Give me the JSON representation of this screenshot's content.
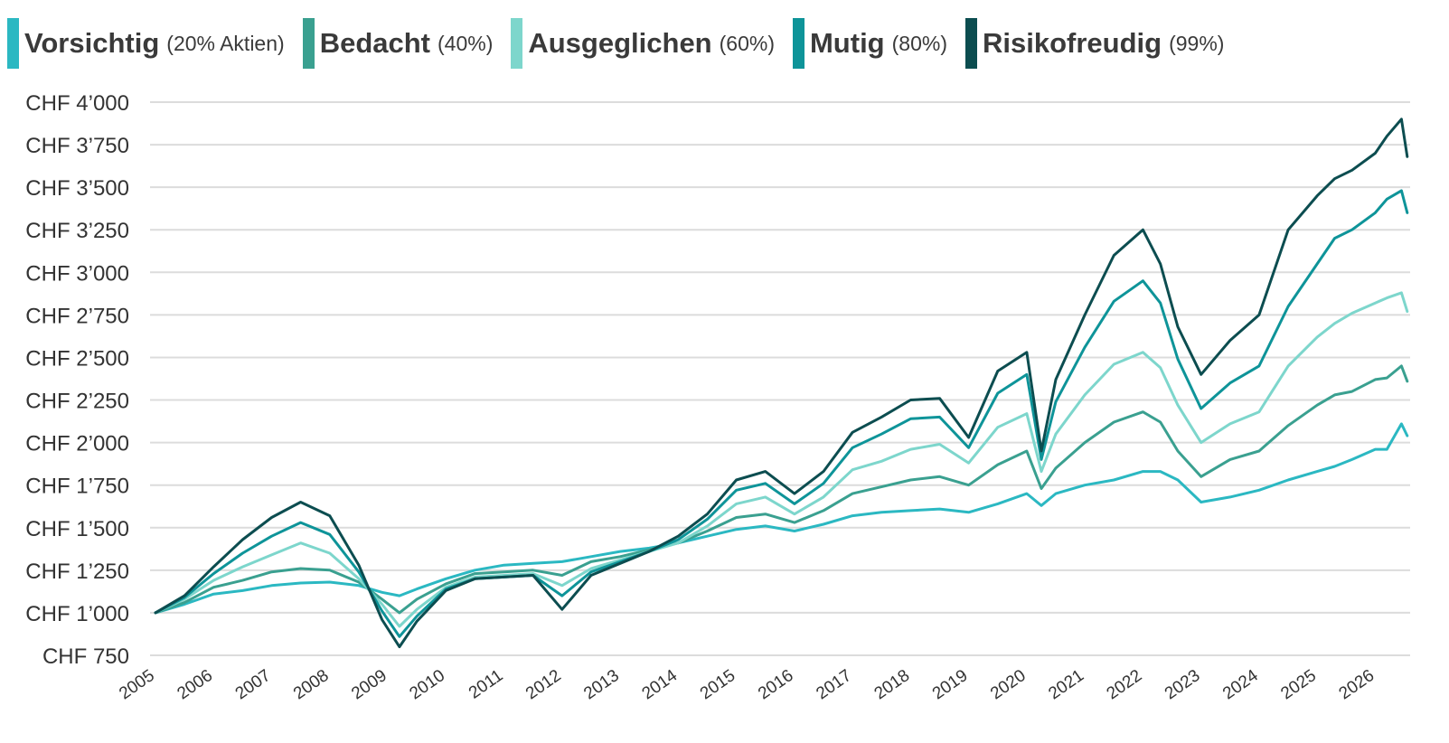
{
  "chart_data": {
    "type": "line",
    "title": "",
    "xlabel": "",
    "ylabel": "",
    "x_ticks": [
      "2005",
      "2006",
      "2007",
      "2008",
      "2009",
      "2010",
      "2011",
      "2012",
      "2013",
      "2014",
      "2015",
      "2016",
      "2017",
      "2018",
      "2019",
      "2020",
      "2021",
      "2022",
      "2023",
      "2024",
      "2025",
      "2026"
    ],
    "y_ticks": [
      {
        "value": 750,
        "label": "CHF 750"
      },
      {
        "value": 1000,
        "label": "CHF 1’000"
      },
      {
        "value": 1250,
        "label": "CHF 1’250"
      },
      {
        "value": 1500,
        "label": "CHF 1’500"
      },
      {
        "value": 1750,
        "label": "CHF 1’750"
      },
      {
        "value": 2000,
        "label": "CHF 2’000"
      },
      {
        "value": 2250,
        "label": "CHF 2’250"
      },
      {
        "value": 2500,
        "label": "CHF 2’500"
      },
      {
        "value": 2750,
        "label": "CHF 2’750"
      },
      {
        "value": 3000,
        "label": "CHF 3’000"
      },
      {
        "value": 3250,
        "label": "CHF 3’250"
      },
      {
        "value": 3500,
        "label": "CHF 3’500"
      },
      {
        "value": 3750,
        "label": "CHF 3’750"
      },
      {
        "value": 4000,
        "label": "CHF 4’000"
      }
    ],
    "xlim": [
      2005,
      2026.6
    ],
    "ylim": [
      750,
      4000
    ],
    "grid": "horizontal",
    "legend_position": "top",
    "series": [
      {
        "name": "Vorsichtig",
        "note": "(20% Aktien)",
        "color": "#2bb8c2",
        "x": [
          2005,
          2005.5,
          2006,
          2006.5,
          2007,
          2007.5,
          2008,
          2008.5,
          2008.9,
          2009.2,
          2009.5,
          2010,
          2010.5,
          2011,
          2011.5,
          2012,
          2012.5,
          2013,
          2013.5,
          2014,
          2014.5,
          2015,
          2015.5,
          2016,
          2016.5,
          2017,
          2017.5,
          2018,
          2018.5,
          2019,
          2019.5,
          2020,
          2020.25,
          2020.5,
          2021,
          2021.5,
          2022,
          2022.3,
          2022.6,
          2023,
          2023.5,
          2024,
          2024.5,
          2025,
          2025.3,
          2025.6,
          2026,
          2026.2,
          2026.45,
          2026.55
        ],
        "values": [
          1000,
          1050,
          1110,
          1130,
          1160,
          1175,
          1180,
          1160,
          1120,
          1100,
          1140,
          1200,
          1250,
          1280,
          1290,
          1300,
          1330,
          1360,
          1380,
          1410,
          1450,
          1490,
          1510,
          1480,
          1520,
          1570,
          1590,
          1600,
          1610,
          1590,
          1640,
          1700,
          1630,
          1700,
          1750,
          1780,
          1830,
          1830,
          1780,
          1650,
          1680,
          1720,
          1780,
          1830,
          1860,
          1900,
          1960,
          1960,
          2110,
          2040
        ]
      },
      {
        "name": "Bedacht",
        "note": "(40%)",
        "color": "#3aa090",
        "x": [
          2005,
          2005.5,
          2006,
          2006.5,
          2007,
          2007.5,
          2008,
          2008.5,
          2008.9,
          2009.2,
          2009.5,
          2010,
          2010.5,
          2011,
          2011.5,
          2012,
          2012.5,
          2013,
          2013.5,
          2014,
          2014.5,
          2015,
          2015.5,
          2016,
          2016.5,
          2017,
          2017.5,
          2018,
          2018.5,
          2019,
          2019.5,
          2020,
          2020.25,
          2020.5,
          2021,
          2021.5,
          2022,
          2022.3,
          2022.6,
          2023,
          2023.5,
          2024,
          2024.5,
          2025,
          2025.3,
          2025.6,
          2026,
          2026.2,
          2026.45,
          2026.55
        ],
        "values": [
          1000,
          1060,
          1150,
          1190,
          1240,
          1260,
          1250,
          1180,
          1080,
          1000,
          1080,
          1170,
          1230,
          1240,
          1250,
          1220,
          1300,
          1330,
          1370,
          1410,
          1480,
          1560,
          1580,
          1530,
          1600,
          1700,
          1740,
          1780,
          1800,
          1750,
          1870,
          1950,
          1730,
          1850,
          2000,
          2120,
          2180,
          2120,
          1950,
          1800,
          1900,
          1950,
          2100,
          2220,
          2280,
          2300,
          2370,
          2380,
          2450,
          2360
        ]
      },
      {
        "name": "Ausgeglichen",
        "note": "(60%)",
        "color": "#7dd6cc",
        "x": [
          2005,
          2005.5,
          2006,
          2006.5,
          2007,
          2007.5,
          2008,
          2008.5,
          2008.9,
          2009.2,
          2009.5,
          2010,
          2010.5,
          2011,
          2011.5,
          2012,
          2012.5,
          2013,
          2013.5,
          2014,
          2014.5,
          2015,
          2015.5,
          2016,
          2016.5,
          2017,
          2017.5,
          2018,
          2018.5,
          2019,
          2019.5,
          2020,
          2020.25,
          2020.5,
          2021,
          2021.5,
          2022,
          2022.3,
          2022.6,
          2023,
          2023.5,
          2024,
          2024.5,
          2025,
          2025.3,
          2025.6,
          2026,
          2026.2,
          2026.45,
          2026.55
        ],
        "values": [
          1000,
          1080,
          1190,
          1270,
          1340,
          1410,
          1350,
          1200,
          1050,
          920,
          1020,
          1150,
          1210,
          1220,
          1230,
          1160,
          1260,
          1310,
          1360,
          1410,
          1510,
          1640,
          1680,
          1580,
          1680,
          1840,
          1890,
          1960,
          1990,
          1880,
          2090,
          2170,
          1830,
          2050,
          2280,
          2460,
          2530,
          2440,
          2220,
          2000,
          2110,
          2180,
          2450,
          2620,
          2700,
          2760,
          2820,
          2850,
          2880,
          2770
        ]
      },
      {
        "name": "Mutig",
        "note": "(80%)",
        "color": "#0e9499",
        "x": [
          2005,
          2005.5,
          2006,
          2006.5,
          2007,
          2007.5,
          2008,
          2008.5,
          2008.9,
          2009.2,
          2009.5,
          2010,
          2010.5,
          2011,
          2011.5,
          2012,
          2012.5,
          2013,
          2013.5,
          2014,
          2014.5,
          2015,
          2015.5,
          2016,
          2016.5,
          2017,
          2017.5,
          2018,
          2018.5,
          2019,
          2019.5,
          2020,
          2020.25,
          2020.5,
          2021,
          2021.5,
          2022,
          2022.3,
          2022.6,
          2023,
          2023.5,
          2024,
          2024.5,
          2025,
          2025.3,
          2025.6,
          2026,
          2026.2,
          2026.45,
          2026.55
        ],
        "values": [
          1000,
          1090,
          1230,
          1350,
          1450,
          1530,
          1460,
          1240,
          1010,
          860,
          980,
          1140,
          1200,
          1210,
          1220,
          1100,
          1240,
          1300,
          1360,
          1430,
          1550,
          1720,
          1760,
          1640,
          1760,
          1970,
          2050,
          2140,
          2150,
          1970,
          2290,
          2400,
          1900,
          2240,
          2560,
          2830,
          2950,
          2820,
          2490,
          2200,
          2350,
          2450,
          2800,
          3050,
          3200,
          3250,
          3350,
          3430,
          3480,
          3350
        ]
      },
      {
        "name": "Risikofreudig",
        "note": "(99%)",
        "color": "#0c4d50",
        "x": [
          2005,
          2005.5,
          2006,
          2006.5,
          2007,
          2007.5,
          2008,
          2008.5,
          2008.9,
          2009.2,
          2009.5,
          2010,
          2010.5,
          2011,
          2011.5,
          2012,
          2012.5,
          2013,
          2013.5,
          2014,
          2014.5,
          2015,
          2015.5,
          2016,
          2016.5,
          2017,
          2017.5,
          2018,
          2018.5,
          2019,
          2019.5,
          2020,
          2020.25,
          2020.5,
          2021,
          2021.5,
          2022,
          2022.3,
          2022.6,
          2023,
          2023.5,
          2024,
          2024.5,
          2025,
          2025.3,
          2025.6,
          2026,
          2026.2,
          2026.45,
          2026.55
        ],
        "values": [
          1000,
          1100,
          1270,
          1430,
          1560,
          1650,
          1570,
          1280,
          960,
          800,
          950,
          1130,
          1200,
          1210,
          1220,
          1020,
          1220,
          1290,
          1360,
          1450,
          1580,
          1780,
          1830,
          1700,
          1830,
          2060,
          2150,
          2250,
          2260,
          2030,
          2420,
          2530,
          1950,
          2370,
          2750,
          3100,
          3250,
          3050,
          2680,
          2400,
          2600,
          2750,
          3250,
          3450,
          3550,
          3600,
          3700,
          3800,
          3900,
          3680
        ]
      }
    ]
  }
}
